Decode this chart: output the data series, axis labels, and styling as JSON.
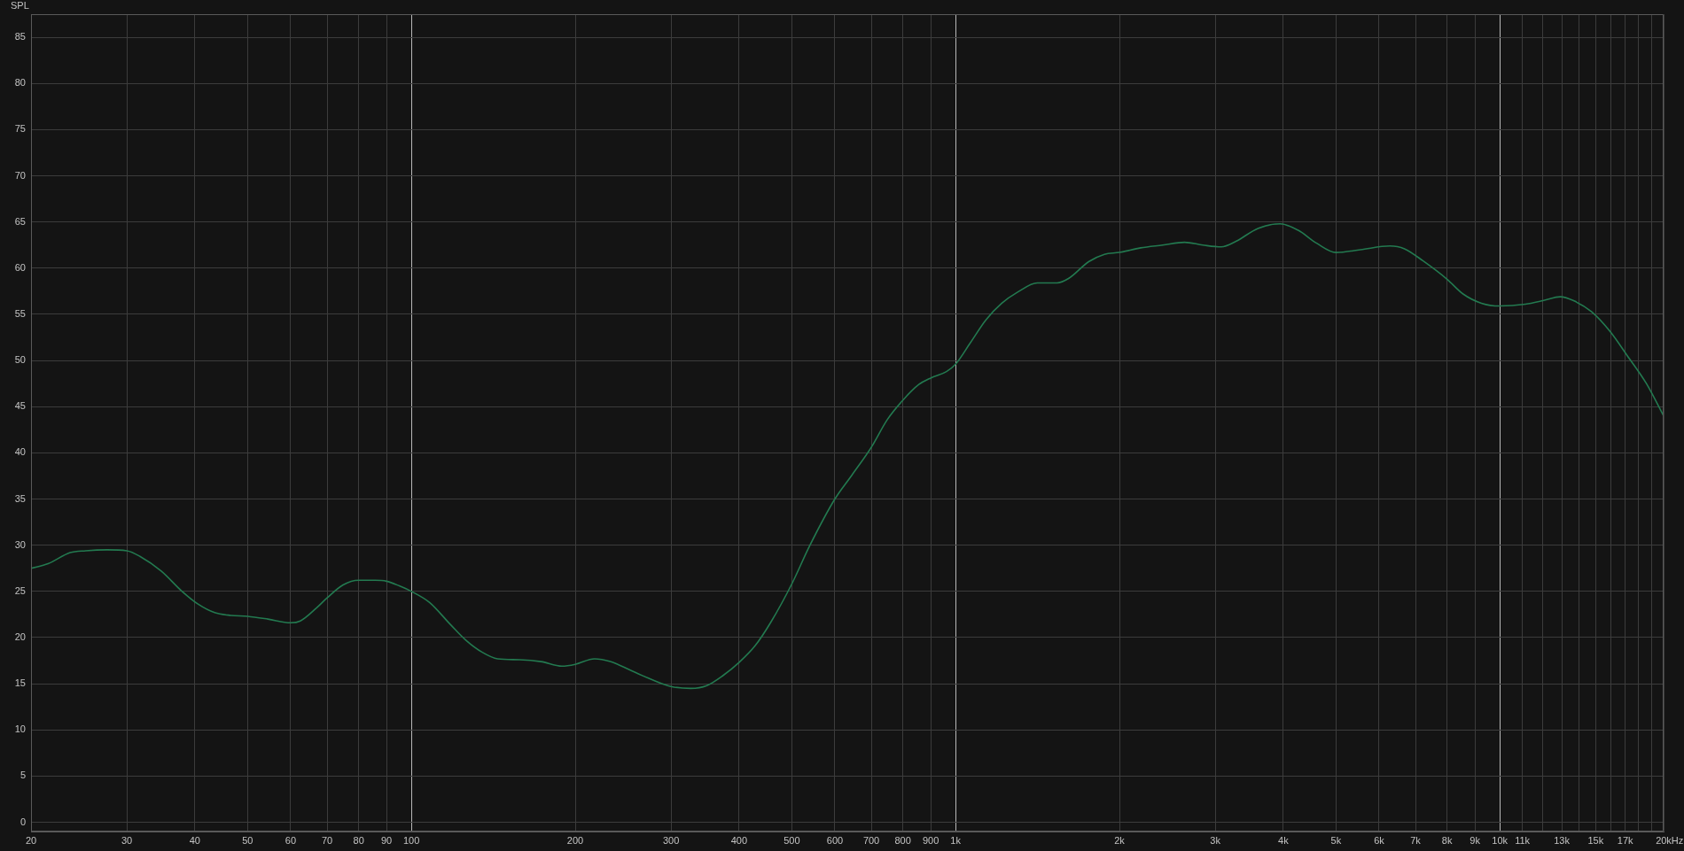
{
  "chart_data": {
    "type": "line",
    "ylabel": "SPL",
    "xlabel": "Hz",
    "color": "#237a50",
    "log": "x",
    "grid": true,
    "xlim": [
      20,
      20000
    ],
    "ylim": [
      -1,
      87.5
    ],
    "xticks": [
      20,
      30,
      40,
      50,
      60,
      70,
      80,
      90,
      100,
      200,
      300,
      400,
      500,
      600,
      700,
      800,
      900,
      {
        "value": 1000,
        "label": "1k"
      },
      {
        "value": 2000,
        "label": "2k"
      },
      {
        "value": 3000,
        "label": "3k"
      },
      {
        "value": 4000,
        "label": "4k"
      },
      {
        "value": 5000,
        "label": "5k"
      },
      {
        "value": 6000,
        "label": "6k"
      },
      {
        "value": 7000,
        "label": "7k"
      },
      {
        "value": 8000,
        "label": "8k"
      },
      {
        "value": 9000,
        "label": "9k"
      },
      {
        "value": 10000,
        "label": "10k"
      },
      {
        "value": 11000,
        "label": "11k"
      },
      {
        "value": 12000,
        "label": null
      },
      {
        "value": 13000,
        "label": "13k"
      },
      {
        "value": 14000,
        "label": null
      },
      {
        "value": 15000,
        "label": "15k"
      },
      {
        "value": 16000,
        "label": null
      },
      {
        "value": 17000,
        "label": "17k"
      },
      {
        "value": 18000,
        "label": null
      },
      {
        "value": 19000,
        "label": null
      },
      {
        "value": 20000,
        "label": "20k"
      }
    ],
    "yticks": [
      0,
      5,
      10,
      15,
      20,
      25,
      30,
      35,
      40,
      45,
      50,
      55,
      60,
      65,
      70,
      75,
      80,
      85
    ],
    "x": [
      20,
      21.5,
      23.6,
      25.2,
      27.6,
      30,
      31.7,
      34.7,
      37.9,
      40.6,
      43.5,
      46.6,
      50,
      54.5,
      60,
      62.5,
      66.9,
      70,
      74.9,
      80,
      85.8,
      90,
      95,
      100,
      108,
      118,
      126,
      135,
      144,
      158,
      173,
      189,
      200,
      217,
      232,
      254,
      278,
      300,
      326,
      349,
      374,
      400,
      428,
      458,
      500,
      540,
      600,
      645,
      700,
      749,
      800,
      856,
      900,
      962,
      1000,
      1064,
      1137,
      1216,
      1300,
      1413,
      1536,
      1615,
      1756,
      1877,
      2000,
      2188,
      2401,
      2634,
      2847,
      3078,
      3275,
      3594,
      3945,
      4262,
      4607,
      5000,
      5546,
      6281,
      6680,
      7221,
      8000,
      8562,
      9254,
      10000,
      11145,
      12044,
      12912,
      13636,
      14736,
      15922,
      17209,
      18597,
      20000
    ],
    "values": [
      27.5,
      28.0,
      29.2,
      29.4,
      29.5,
      29.4,
      28.8,
      27.2,
      25.0,
      23.6,
      22.7,
      22.4,
      22.3,
      22.0,
      21.6,
      21.8,
      23.2,
      24.3,
      25.7,
      26.2,
      26.2,
      26.1,
      25.6,
      25.0,
      23.8,
      21.4,
      19.7,
      18.4,
      17.7,
      17.6,
      17.4,
      16.9,
      17.1,
      17.7,
      17.4,
      16.4,
      15.4,
      14.7,
      14.5,
      14.8,
      15.9,
      17.3,
      19.1,
      21.7,
      25.8,
      30.0,
      35.0,
      37.6,
      40.6,
      43.6,
      45.7,
      47.4,
      48.1,
      48.8,
      49.6,
      51.9,
      54.4,
      56.2,
      57.4,
      58.4,
      58.4,
      58.9,
      60.7,
      61.5,
      61.7,
      62.2,
      62.5,
      62.8,
      62.5,
      62.3,
      62.9,
      64.3,
      64.8,
      64.1,
      62.7,
      61.7,
      62.0,
      62.4,
      62.1,
      60.8,
      58.8,
      57.2,
      56.2,
      55.9,
      56.1,
      56.5,
      56.9,
      56.5,
      55.3,
      53.2,
      50.4,
      47.5,
      44.0
    ]
  }
}
